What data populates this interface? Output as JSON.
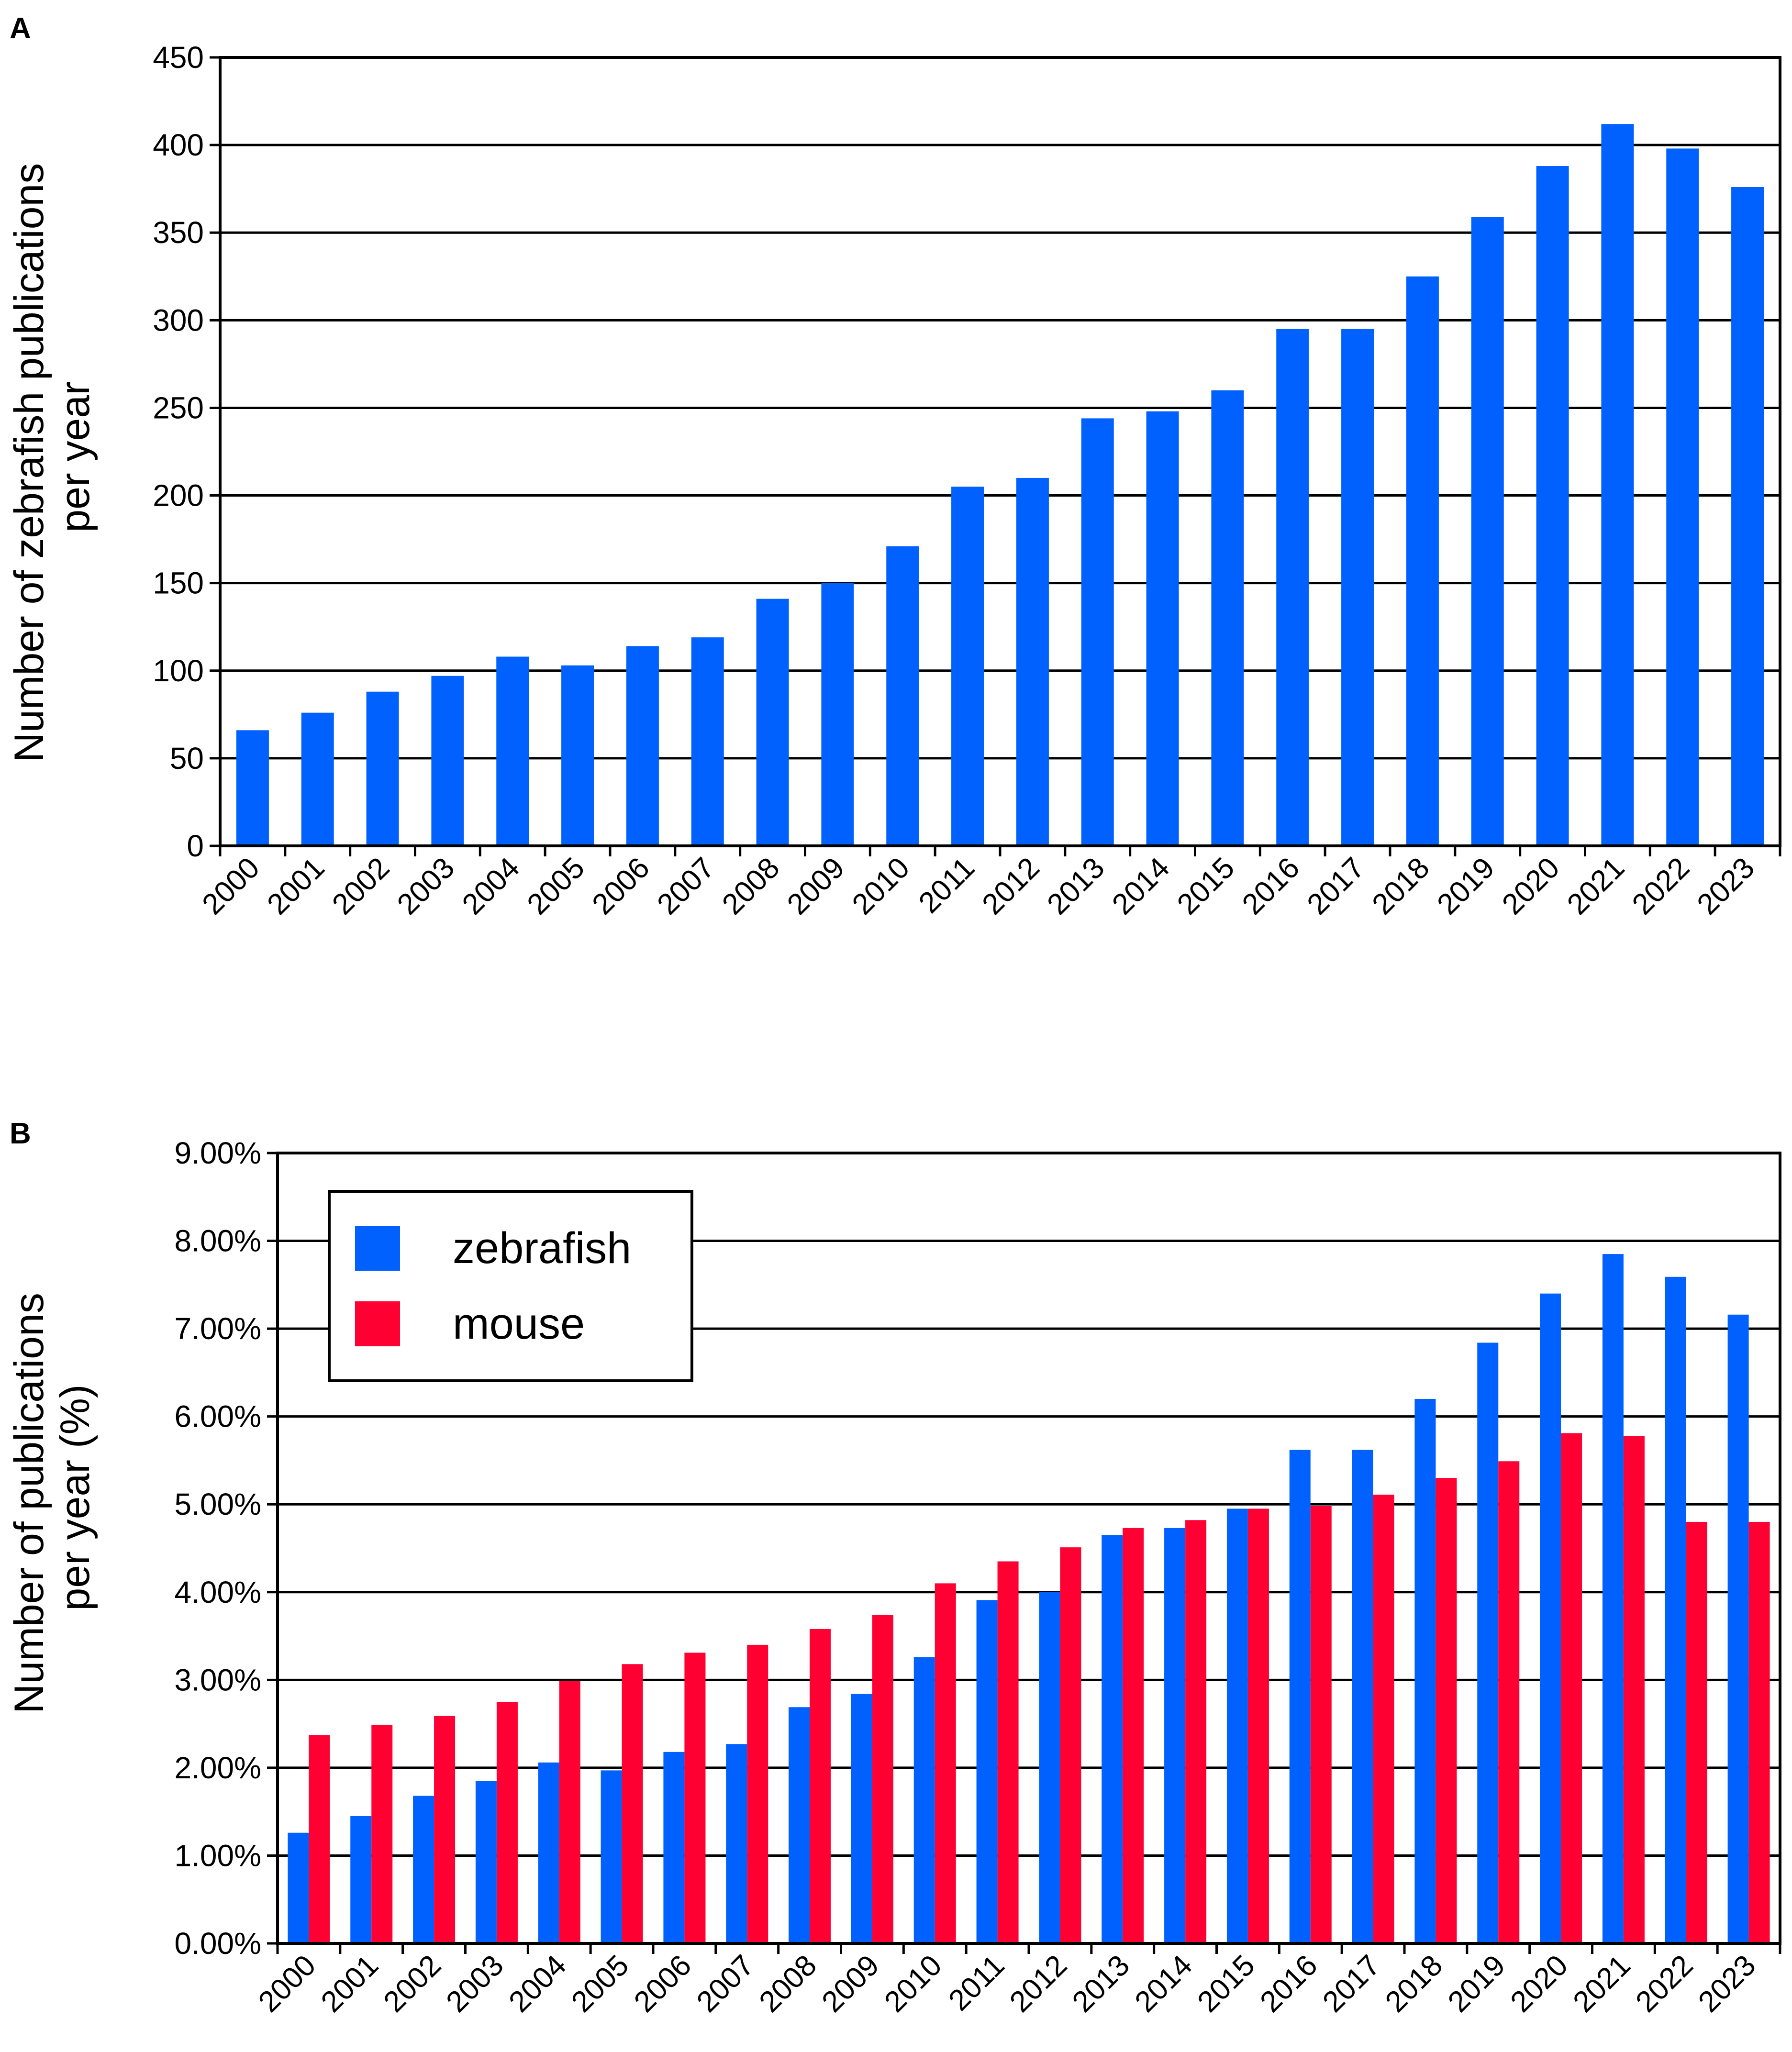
{
  "colors": {
    "zebrafish": "#0061ff",
    "mouse": "#ff0033",
    "axis": "#000000",
    "grid": "#000000"
  },
  "chart_data": [
    {
      "panel": "A",
      "type": "bar",
      "title": "",
      "xlabel": "",
      "ylabel": [
        "Number of zebrafish publications",
        "per year"
      ],
      "ylim": [
        0,
        450
      ],
      "yticks": [
        0,
        50,
        100,
        150,
        200,
        250,
        300,
        350,
        400,
        450
      ],
      "ytick_labels": [
        "0",
        "50",
        "100",
        "150",
        "200",
        "250",
        "300",
        "350",
        "400",
        "450"
      ],
      "grid": true,
      "categories": [
        "2000",
        "2001",
        "2002",
        "2003",
        "2004",
        "2005",
        "2006",
        "2007",
        "2008",
        "2009",
        "2010",
        "2011",
        "2012",
        "2013",
        "2014",
        "2015",
        "2016",
        "2017",
        "2018",
        "2019",
        "2020",
        "2021",
        "2022",
        "2023"
      ],
      "series": [
        {
          "name": "zebrafish",
          "values": [
            66,
            76,
            88,
            97,
            108,
            103,
            114,
            119,
            141,
            150,
            171,
            205,
            210,
            244,
            248,
            260,
            295,
            295,
            325,
            359,
            388,
            412,
            398,
            376
          ]
        }
      ]
    },
    {
      "panel": "B",
      "type": "bar",
      "title": "",
      "xlabel": "",
      "ylabel": [
        "Number of publications",
        "per year (%)"
      ],
      "ylim": [
        0,
        9
      ],
      "yticks": [
        0,
        1,
        2,
        3,
        4,
        5,
        6,
        7,
        8,
        9
      ],
      "ytick_labels": [
        "0.00%",
        "1.00%",
        "2.00%",
        "3.00%",
        "4.00%",
        "5.00%",
        "6.00%",
        "7.00%",
        "8.00%",
        "9.00%"
      ],
      "grid": true,
      "legend": {
        "position": "top-left",
        "entries": [
          "zebrafish",
          "mouse"
        ]
      },
      "categories": [
        "2000",
        "2001",
        "2002",
        "2003",
        "2004",
        "2005",
        "2006",
        "2007",
        "2008",
        "2009",
        "2010",
        "2011",
        "2012",
        "2013",
        "2014",
        "2015",
        "2016",
        "2017",
        "2018",
        "2019",
        "2020",
        "2021",
        "2022",
        "2023"
      ],
      "series": [
        {
          "name": "zebrafish",
          "values": [
            1.26,
            1.45,
            1.68,
            1.85,
            2.06,
            1.97,
            2.18,
            2.27,
            2.69,
            2.84,
            3.26,
            3.91,
            4.0,
            4.65,
            4.73,
            4.95,
            5.62,
            5.62,
            6.2,
            6.84,
            7.4,
            7.85,
            7.59,
            7.16
          ]
        },
        {
          "name": "mouse",
          "values": [
            2.37,
            2.49,
            2.59,
            2.75,
            2.99,
            3.18,
            3.31,
            3.4,
            3.58,
            3.74,
            4.1,
            4.35,
            4.51,
            4.73,
            4.82,
            4.95,
            4.98,
            5.11,
            5.3,
            5.49,
            5.81,
            5.78,
            4.8,
            4.8
          ]
        }
      ]
    }
  ]
}
